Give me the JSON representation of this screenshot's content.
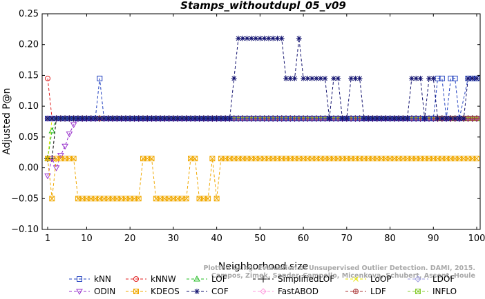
{
  "chart_data": {
    "type": "line",
    "title": "Stamps_withoutdupl_05_v09",
    "xlabel": "Neighborhood size",
    "ylabel": "Adjusted P@n",
    "xlim": [
      0,
      100
    ],
    "ylim": [
      -0.1,
      0.25
    ],
    "xticks": [
      1,
      10,
      20,
      30,
      40,
      50,
      60,
      70,
      80,
      90,
      100
    ],
    "yticks": [
      -0.1,
      -0.05,
      0.0,
      0.05,
      0.1,
      0.15,
      0.2,
      0.25
    ],
    "ytick_labels": [
      "−0.10",
      "−0.05",
      "0.00",
      "0.05",
      "0.10",
      "0.15",
      "0.20",
      "0.25"
    ],
    "grid": false,
    "legend_position": "bottom",
    "watermark": [
      "Plotted using: Evaluation of Unsupervised Outlier Detection. DAMI, 2015.",
      "Campos, Zimek, Sander, Campello, Micenkova, Schubert, Assent, Houle"
    ],
    "series": [
      {
        "name": "kNN",
        "color": "#1f3fbf",
        "marker": "square",
        "values": [
          [
            1,
            0.08
          ],
          [
            12,
            0.08
          ],
          [
            13,
            0.145
          ],
          [
            14,
            0.08
          ],
          [
            85,
            0.08
          ],
          [
            90,
            0.08
          ],
          [
            91,
            0.145
          ],
          [
            92,
            0.145
          ],
          [
            93,
            0.08
          ],
          [
            94,
            0.145
          ],
          [
            95,
            0.145
          ],
          [
            96,
            0.08
          ],
          [
            98,
            0.145
          ],
          [
            99,
            0.145
          ],
          [
            100,
            0.145
          ]
        ]
      },
      {
        "name": "kNNW",
        "color": "#e01c1c",
        "marker": "circle",
        "values": [
          [
            1,
            0.145
          ],
          [
            2,
            0.08
          ],
          [
            100,
            0.08
          ]
        ]
      },
      {
        "name": "LOF",
        "color": "#22bb22",
        "marker": "triangle-up",
        "values": [
          [
            1,
            0.015
          ],
          [
            2,
            0.06
          ],
          [
            3,
            0.08
          ],
          [
            100,
            0.08
          ]
        ]
      },
      {
        "name": "SimplifiedLOF",
        "color": "#000000",
        "marker": "plus",
        "values": [
          [
            1,
            0.015
          ],
          [
            2,
            0.015
          ],
          [
            3,
            0.08
          ],
          [
            100,
            0.08
          ]
        ]
      },
      {
        "name": "LoOP",
        "color": "#e6e600",
        "marker": "x",
        "values": [
          [
            1,
            0.015
          ],
          [
            2,
            0.08
          ],
          [
            100,
            0.08
          ]
        ]
      },
      {
        "name": "LDOF",
        "color": "#9999dd",
        "marker": "diamond",
        "values": [
          [
            1,
            0.08
          ],
          [
            100,
            0.08
          ]
        ]
      },
      {
        "name": "ODIN",
        "color": "#9933cc",
        "marker": "triangle-down",
        "values": [
          [
            1,
            -0.013
          ],
          [
            2,
            0.015
          ],
          [
            3,
            0.0
          ],
          [
            4,
            0.02
          ],
          [
            5,
            0.035
          ],
          [
            6,
            0.055
          ],
          [
            7,
            0.07
          ],
          [
            8,
            0.08
          ],
          [
            100,
            0.08
          ]
        ]
      },
      {
        "name": "KDEOS",
        "color": "#f0a800",
        "marker": "square-x",
        "values": [
          [
            1,
            0.015
          ],
          [
            2,
            -0.05
          ],
          [
            3,
            0.015
          ],
          [
            7,
            0.015
          ],
          [
            8,
            -0.05
          ],
          [
            22,
            -0.05
          ],
          [
            23,
            0.015
          ],
          [
            25,
            0.015
          ],
          [
            26,
            -0.05
          ],
          [
            33,
            -0.05
          ],
          [
            34,
            0.015
          ],
          [
            35,
            0.015
          ],
          [
            36,
            -0.05
          ],
          [
            38,
            -0.05
          ],
          [
            39,
            0.015
          ],
          [
            40,
            -0.05
          ],
          [
            41,
            0.015
          ],
          [
            100,
            0.015
          ]
        ]
      },
      {
        "name": "COF",
        "color": "#10106e",
        "marker": "asterisk",
        "values": [
          [
            1,
            0.08
          ],
          [
            43,
            0.08
          ],
          [
            44,
            0.145
          ],
          [
            45,
            0.21
          ],
          [
            55,
            0.21
          ],
          [
            56,
            0.145
          ],
          [
            58,
            0.145
          ],
          [
            59,
            0.21
          ],
          [
            60,
            0.145
          ],
          [
            65,
            0.145
          ],
          [
            66,
            0.08
          ],
          [
            67,
            0.145
          ],
          [
            68,
            0.145
          ],
          [
            69,
            0.08
          ],
          [
            70,
            0.08
          ],
          [
            71,
            0.145
          ],
          [
            73,
            0.145
          ],
          [
            74,
            0.08
          ],
          [
            84,
            0.08
          ],
          [
            85,
            0.145
          ],
          [
            87,
            0.145
          ],
          [
            88,
            0.08
          ],
          [
            89,
            0.145
          ],
          [
            90,
            0.145
          ],
          [
            91,
            0.08
          ],
          [
            97,
            0.08
          ],
          [
            98,
            0.145
          ],
          [
            100,
            0.145
          ]
        ]
      },
      {
        "name": "FastABOD",
        "color": "#ff99dd",
        "marker": "diamond",
        "values": [
          [
            1,
            0.08
          ],
          [
            100,
            0.08
          ]
        ]
      },
      {
        "name": "LDF",
        "color": "#aa3333",
        "marker": "circle-plus",
        "values": [
          [
            1,
            0.08
          ],
          [
            13,
            0.08
          ],
          [
            90,
            0.08
          ],
          [
            91,
            0.08
          ],
          [
            94,
            0.08
          ],
          [
            95,
            0.08
          ],
          [
            99,
            0.08
          ],
          [
            100,
            0.08
          ]
        ]
      },
      {
        "name": "INFLO",
        "color": "#88cc33",
        "marker": "square-x",
        "values": [
          [
            1,
            0.08
          ],
          [
            100,
            0.08
          ]
        ]
      }
    ]
  }
}
